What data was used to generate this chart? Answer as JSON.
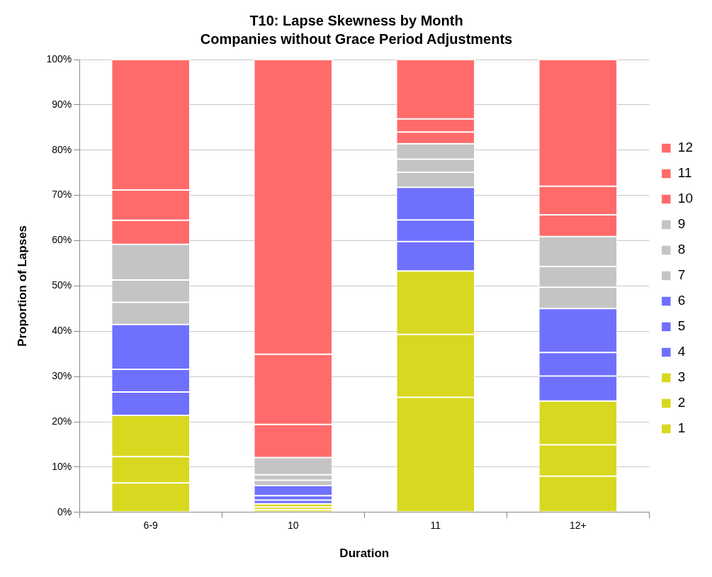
{
  "chart_data": {
    "type": "bar",
    "stacked": true,
    "title": "T10: Lapse Skewness by Month",
    "subtitle": "Companies without Grace Period Adjustments",
    "xlabel": "Duration",
    "ylabel": "Proportion of Lapses",
    "categories": [
      "6-9",
      "10",
      "11",
      "12+"
    ],
    "series": [
      {
        "name": "1",
        "color": "#d8d820",
        "values": [
          6.5,
          0.6,
          25.4,
          8.0
        ]
      },
      {
        "name": "2",
        "color": "#d8d820",
        "values": [
          5.8,
          0.6,
          13.9,
          6.9
        ]
      },
      {
        "name": "3",
        "color": "#d8d820",
        "values": [
          9.1,
          0.7,
          14.0,
          9.7
        ]
      },
      {
        "name": "4",
        "color": "#7070ff",
        "values": [
          5.2,
          0.8,
          6.5,
          5.5
        ]
      },
      {
        "name": "5",
        "color": "#7070ff",
        "values": [
          5.0,
          1.0,
          4.8,
          5.2
        ]
      },
      {
        "name": "6",
        "color": "#7070ff",
        "values": [
          9.9,
          2.2,
          7.2,
          9.7
        ]
      },
      {
        "name": "7",
        "color": "#c4c4c4",
        "values": [
          4.9,
          1.2,
          3.3,
          4.7
        ]
      },
      {
        "name": "8",
        "color": "#c4c4c4",
        "values": [
          4.9,
          1.2,
          2.9,
          4.6
        ]
      },
      {
        "name": "9",
        "color": "#c4c4c4",
        "values": [
          7.9,
          3.8,
          3.4,
          6.6
        ]
      },
      {
        "name": "10",
        "color": "#ff6b6b",
        "values": [
          5.3,
          7.3,
          2.6,
          4.8
        ]
      },
      {
        "name": "11",
        "color": "#ff6b6b",
        "values": [
          6.7,
          15.5,
          2.9,
          6.3
        ]
      },
      {
        "name": "12",
        "color": "#ff6b6b",
        "values": [
          28.8,
          65.1,
          13.1,
          28.0
        ]
      }
    ],
    "ylim": [
      0,
      100
    ],
    "yticks": [
      {
        "value": 0,
        "label": "0%"
      },
      {
        "value": 10,
        "label": "10%"
      },
      {
        "value": 20,
        "label": "20%"
      },
      {
        "value": 30,
        "label": "30%"
      },
      {
        "value": 40,
        "label": "40%"
      },
      {
        "value": 50,
        "label": "50%"
      },
      {
        "value": 60,
        "label": "60%"
      },
      {
        "value": 70,
        "label": "70%"
      },
      {
        "value": 80,
        "label": "80%"
      },
      {
        "value": 90,
        "label": "90%"
      },
      {
        "value": 100,
        "label": "100%"
      }
    ],
    "grid": "y",
    "legend": "right"
  }
}
